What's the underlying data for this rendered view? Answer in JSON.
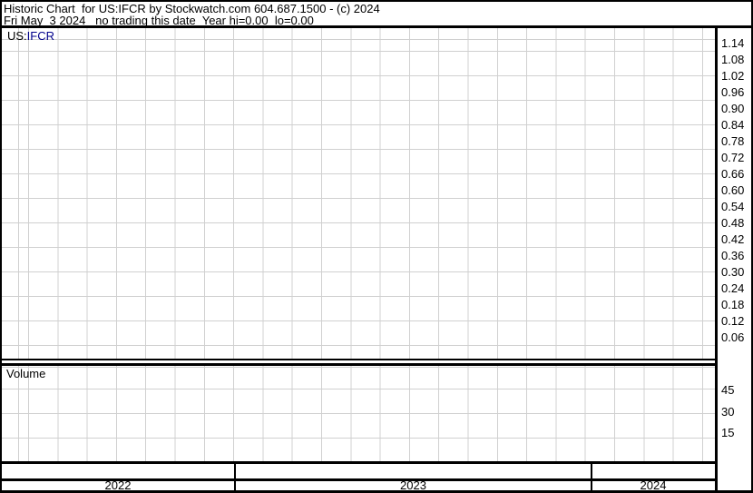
{
  "header": {
    "line1": "Historic Chart  for US:IFCR by Stockwatch.com 604.687.1500 - (c) 2024",
    "line2": "Fri May  3 2024   no trading this date  Year hi=0.00  lo=0.00"
  },
  "price_panel": {
    "market_prefix": "US:",
    "symbol": "IFCR",
    "axis_labels": [
      "1.14",
      "1.08",
      "1.02",
      "0.96",
      "0.90",
      "0.84",
      "0.78",
      "0.72",
      "0.66",
      "0.60",
      "0.54",
      "0.48",
      "0.42",
      "0.36",
      "0.30",
      "0.24",
      "0.18",
      "0.12",
      "0.06"
    ]
  },
  "volume_panel": {
    "label": "Volume",
    "axis_labels": [
      "45",
      "30",
      "15"
    ]
  },
  "date_axis": {
    "years": [
      "2022",
      "2023",
      "2024"
    ]
  },
  "colors": {
    "border": "#000000",
    "grid": "#d0d0d0",
    "text": "#000000",
    "symbol_accent": "#00008B",
    "background": "#ffffff"
  },
  "chart_data": {
    "type": "line",
    "title": "Historic Chart for US:IFCR by Stockwatch.com 604.687.1500 - (c) 2024",
    "subtitle": "Fri May 3 2024  no trading this date  Year hi=0.00 lo=0.00",
    "series": [],
    "x_axis": {
      "tick_labels": [
        "2022",
        "2023",
        "2024"
      ],
      "unit": "year",
      "range_months_shown": 24
    },
    "price_axis": {
      "side": "right",
      "ticks": [
        1.14,
        1.08,
        1.02,
        0.96,
        0.9,
        0.84,
        0.78,
        0.72,
        0.66,
        0.6,
        0.54,
        0.48,
        0.42,
        0.36,
        0.3,
        0.24,
        0.18,
        0.12,
        0.06
      ],
      "tick_step": 0.06
    },
    "volume_axis": {
      "side": "right",
      "label": "Volume",
      "ticks": [
        45,
        30,
        15
      ],
      "tick_step": 15
    },
    "grid": true,
    "legend": false,
    "plotted_points": "none - chart is empty (no trading data)"
  }
}
